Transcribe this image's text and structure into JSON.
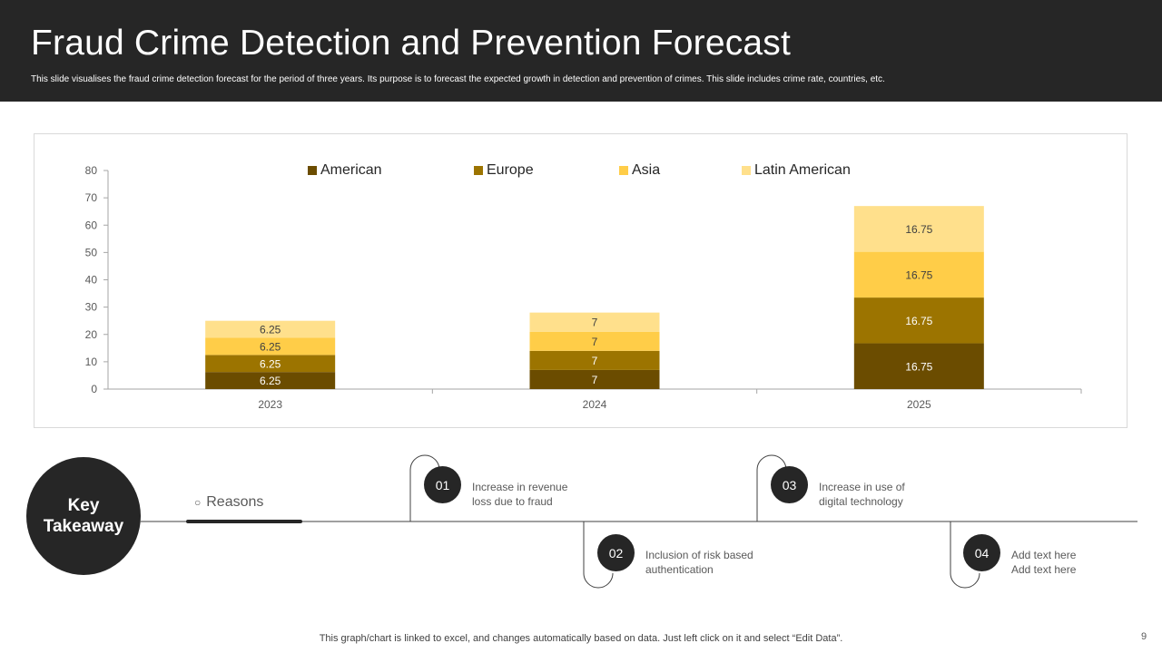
{
  "slide": {
    "title": "Fraud Crime Detection and Prevention Forecast",
    "subtitle": "This slide visualises the fraud crime detection forecast for the period of three years. Its purpose is to forecast the expected growth in detection and prevention of crimes. This slide includes crime rate, countries, etc.",
    "footer_note": "This graph/chart is linked to excel,  and changes automatically based on data. Just left click on it and select “Edit Data”.",
    "page_number": "9"
  },
  "colors": {
    "header_bg": "#262626",
    "american": "#6B4C00",
    "europe": "#9C7400",
    "asia": "#FFCD48",
    "latin_american": "#FFE08C"
  },
  "chart_data": {
    "type": "bar",
    "stacked": true,
    "categories": [
      "2023",
      "2024",
      "2025"
    ],
    "series": [
      {
        "name": "American",
        "values": [
          6.25,
          7,
          16.75
        ],
        "labels": [
          "6.25",
          "7",
          "16.75"
        ]
      },
      {
        "name": "Europe",
        "values": [
          6.25,
          7,
          16.75
        ],
        "labels": [
          "6.25",
          "7",
          "16.75"
        ]
      },
      {
        "name": "Asia",
        "values": [
          6.25,
          7,
          16.75
        ],
        "labels": [
          "6.25",
          "7",
          "16.75"
        ]
      },
      {
        "name": "Latin American",
        "values": [
          6.25,
          7,
          16.75
        ],
        "labels": [
          "6.25",
          "7",
          "16.75"
        ]
      }
    ],
    "yticks": [
      "0",
      "10",
      "20",
      "30",
      "40",
      "50",
      "60",
      "70",
      "80"
    ],
    "ylim": [
      0,
      80
    ],
    "title": "",
    "xlabel": "",
    "ylabel": "",
    "legend_position": "top",
    "grid": false
  },
  "key_takeaway": {
    "line1": "Key",
    "line2": "Takeaway",
    "bullet": "○",
    "reasons_label": "Reasons",
    "steps": [
      {
        "number": "01",
        "line1": "Increase in revenue",
        "line2": "loss due to fraud"
      },
      {
        "number": "02",
        "line1": "Inclusion of risk based",
        "line2": "authentication"
      },
      {
        "number": "03",
        "line1": "Increase in use of",
        "line2": "digital technology"
      },
      {
        "number": "04",
        "line1": "Add text here",
        "line2": "Add text here"
      }
    ]
  }
}
